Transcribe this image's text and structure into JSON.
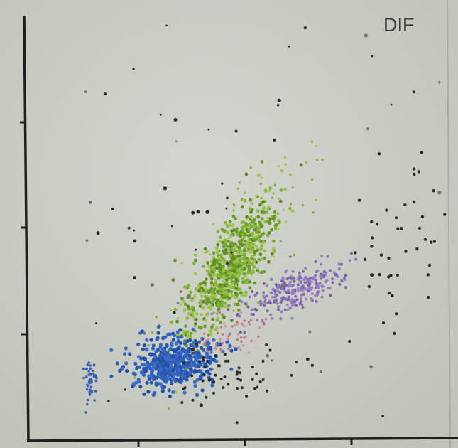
{
  "title": "DIF"
}
